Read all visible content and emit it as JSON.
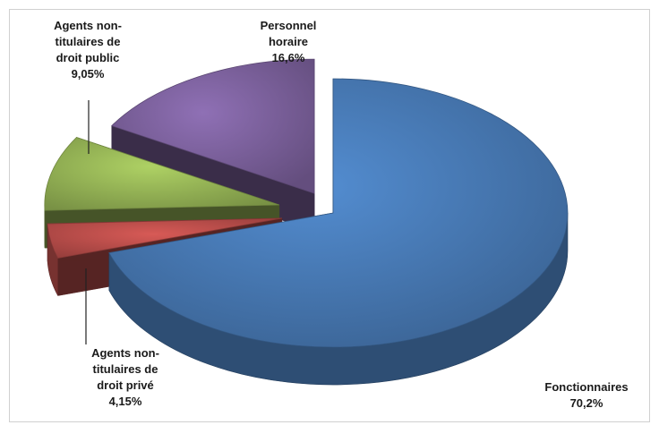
{
  "chart_data": {
    "type": "pie",
    "style": "3d-exploded",
    "title": "",
    "slices": [
      {
        "name": "Fonctionnaires",
        "value": 70.2,
        "value_label": "70,2%",
        "color": "#4a7ebb"
      },
      {
        "name": "Agents non-titulaires de droit privé",
        "value": 4.15,
        "value_label": "4,15%",
        "color": "#c0504d"
      },
      {
        "name": "Agents non-titulaires de droit public",
        "value": 9.05,
        "value_label": "9,05%",
        "color": "#9bbb59"
      },
      {
        "name": "Personnel horaire",
        "value": 16.6,
        "value_label": "16,6%",
        "color": "#8064a2"
      }
    ],
    "labels": [
      {
        "lines": [
          "Fonctionnaires",
          "70,2%"
        ]
      },
      {
        "lines": [
          "Agents non-",
          "titulaires de",
          "droit privé",
          "4,15%"
        ]
      },
      {
        "lines": [
          "Agents non-",
          "titulaires de",
          "droit public",
          "9,05%"
        ]
      },
      {
        "lines": [
          "Personnel",
          "horaire",
          "16,6%"
        ]
      }
    ]
  }
}
